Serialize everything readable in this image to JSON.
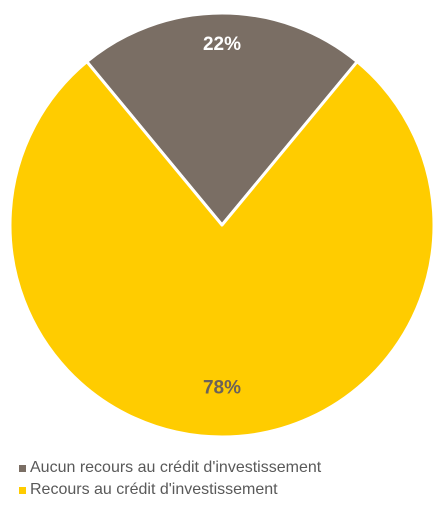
{
  "chart_data": {
    "type": "pie",
    "title": "",
    "slices": [
      {
        "label": "Aucun recours au crédit d'investissement",
        "value": 22,
        "display": "22%",
        "color": "#7a6e64",
        "label_color": "#ffffff"
      },
      {
        "label": "Recours au crédit d'investissement",
        "value": 78,
        "display": "78%",
        "color": "#ffcc00",
        "label_color": "#6b6259"
      }
    ],
    "start_angle_deg": -39.6,
    "direction": "clockwise",
    "legend_position": "bottom-left"
  }
}
